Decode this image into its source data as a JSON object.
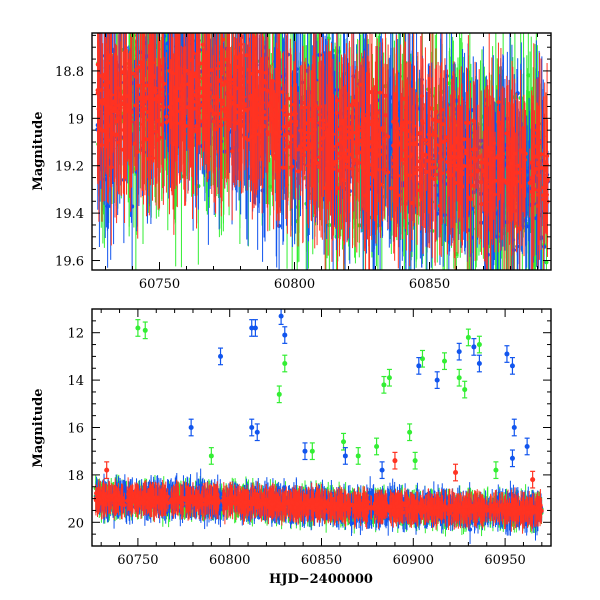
{
  "colors": {
    "green": "#33ee33",
    "blue": "#1155ee",
    "red": "#ff3322",
    "frame": "#000000"
  },
  "chart_data": [
    {
      "id": "top",
      "type": "scatter",
      "title": "",
      "xlabel": "",
      "ylabel": "Magnitude",
      "xlim": [
        60725,
        60895
      ],
      "ylim": [
        19.64,
        18.64
      ],
      "y_inverted": true,
      "xticks": [
        60750,
        60800,
        60850
      ],
      "yticks": [
        18.8,
        19,
        19.2,
        19.4,
        19.6
      ],
      "series": [
        {
          "name": "green",
          "color": "green",
          "trend": [
            [
              60727,
              18.95
            ],
            [
              60760,
              18.88
            ],
            [
              60780,
              18.92
            ],
            [
              60800,
              19.05
            ],
            [
              60850,
              19.15
            ],
            [
              60893,
              19.25
            ]
          ],
          "scatter_sd": 0.25
        },
        {
          "name": "blue",
          "color": "blue",
          "trend": [
            [
              60727,
              18.95
            ],
            [
              60760,
              18.88
            ],
            [
              60780,
              18.92
            ],
            [
              60800,
              19.05
            ],
            [
              60850,
              19.15
            ],
            [
              60893,
              19.25
            ]
          ],
          "scatter_sd": 0.22
        },
        {
          "name": "red",
          "color": "red",
          "trend": [
            [
              60727,
              18.95
            ],
            [
              60760,
              18.88
            ],
            [
              60780,
              18.92
            ],
            [
              60800,
              19.05
            ],
            [
              60850,
              19.15
            ],
            [
              60893,
              19.25
            ]
          ],
          "scatter_sd": 0.15
        }
      ]
    },
    {
      "id": "bottom",
      "type": "scatter",
      "title": "",
      "xlabel": "HJD−2400000",
      "ylabel": "Magnitude",
      "xlim": [
        60725,
        60975
      ],
      "ylim": [
        21,
        11
      ],
      "y_inverted": true,
      "xticks": [
        60750,
        60800,
        60850,
        60900,
        60950
      ],
      "yticks": [
        12,
        14,
        16,
        18,
        20
      ],
      "series": [
        {
          "name": "green",
          "color": "green",
          "trend": [
            [
              60727,
              19.0
            ],
            [
              60800,
              19.1
            ],
            [
              60850,
              19.3
            ],
            [
              60900,
              19.4
            ],
            [
              60970,
              19.5
            ]
          ],
          "scatter_sd": 0.35,
          "outliers": [
            [
              60750,
              11.8
            ],
            [
              60754,
              11.9
            ],
            [
              60790,
              17.2
            ],
            [
              60827,
              14.6
            ],
            [
              60830,
              13.3
            ],
            [
              60845,
              17.0
            ],
            [
              60862,
              16.6
            ],
            [
              60880,
              16.8
            ],
            [
              60884,
              14.2
            ],
            [
              60887,
              13.9
            ],
            [
              60898,
              16.2
            ],
            [
              60905,
              13.1
            ],
            [
              60917,
              13.2
            ],
            [
              60925,
              13.9
            ],
            [
              60928,
              14.4
            ],
            [
              60930,
              12.2
            ],
            [
              60936,
              12.5
            ],
            [
              60945,
              17.8
            ],
            [
              60901,
              17.4
            ],
            [
              60870,
              17.2
            ]
          ]
        },
        {
          "name": "blue",
          "color": "blue",
          "trend": [
            [
              60727,
              19.0
            ],
            [
              60800,
              19.1
            ],
            [
              60850,
              19.3
            ],
            [
              60900,
              19.4
            ],
            [
              60970,
              19.5
            ]
          ],
          "scatter_sd": 0.45,
          "outliers": [
            [
              60779,
              16.0
            ],
            [
              60795,
              13.0
            ],
            [
              60812,
              11.8
            ],
            [
              60814,
              11.8
            ],
            [
              60812,
              16.0
            ],
            [
              60815,
              16.2
            ],
            [
              60828,
              11.3
            ],
            [
              60830,
              12.1
            ],
            [
              60841,
              17.0
            ],
            [
              60863,
              17.2
            ],
            [
              60883,
              17.8
            ],
            [
              60903,
              13.4
            ],
            [
              60913,
              14.0
            ],
            [
              60925,
              12.8
            ],
            [
              60933,
              12.6
            ],
            [
              60936,
              13.3
            ],
            [
              60951,
              12.9
            ],
            [
              60954,
              13.4
            ],
            [
              60955,
              16.0
            ],
            [
              60962,
              16.8
            ],
            [
              60954,
              17.3
            ]
          ]
        },
        {
          "name": "red",
          "color": "red",
          "trend": [
            [
              60727,
              19.0
            ],
            [
              60800,
              19.1
            ],
            [
              60850,
              19.3
            ],
            [
              60900,
              19.4
            ],
            [
              60970,
              19.5
            ]
          ],
          "scatter_sd": 0.2,
          "outliers": [
            [
              60733,
              17.8
            ],
            [
              60890,
              17.4
            ],
            [
              60923,
              17.9
            ],
            [
              60965,
              18.2
            ]
          ]
        }
      ]
    }
  ]
}
